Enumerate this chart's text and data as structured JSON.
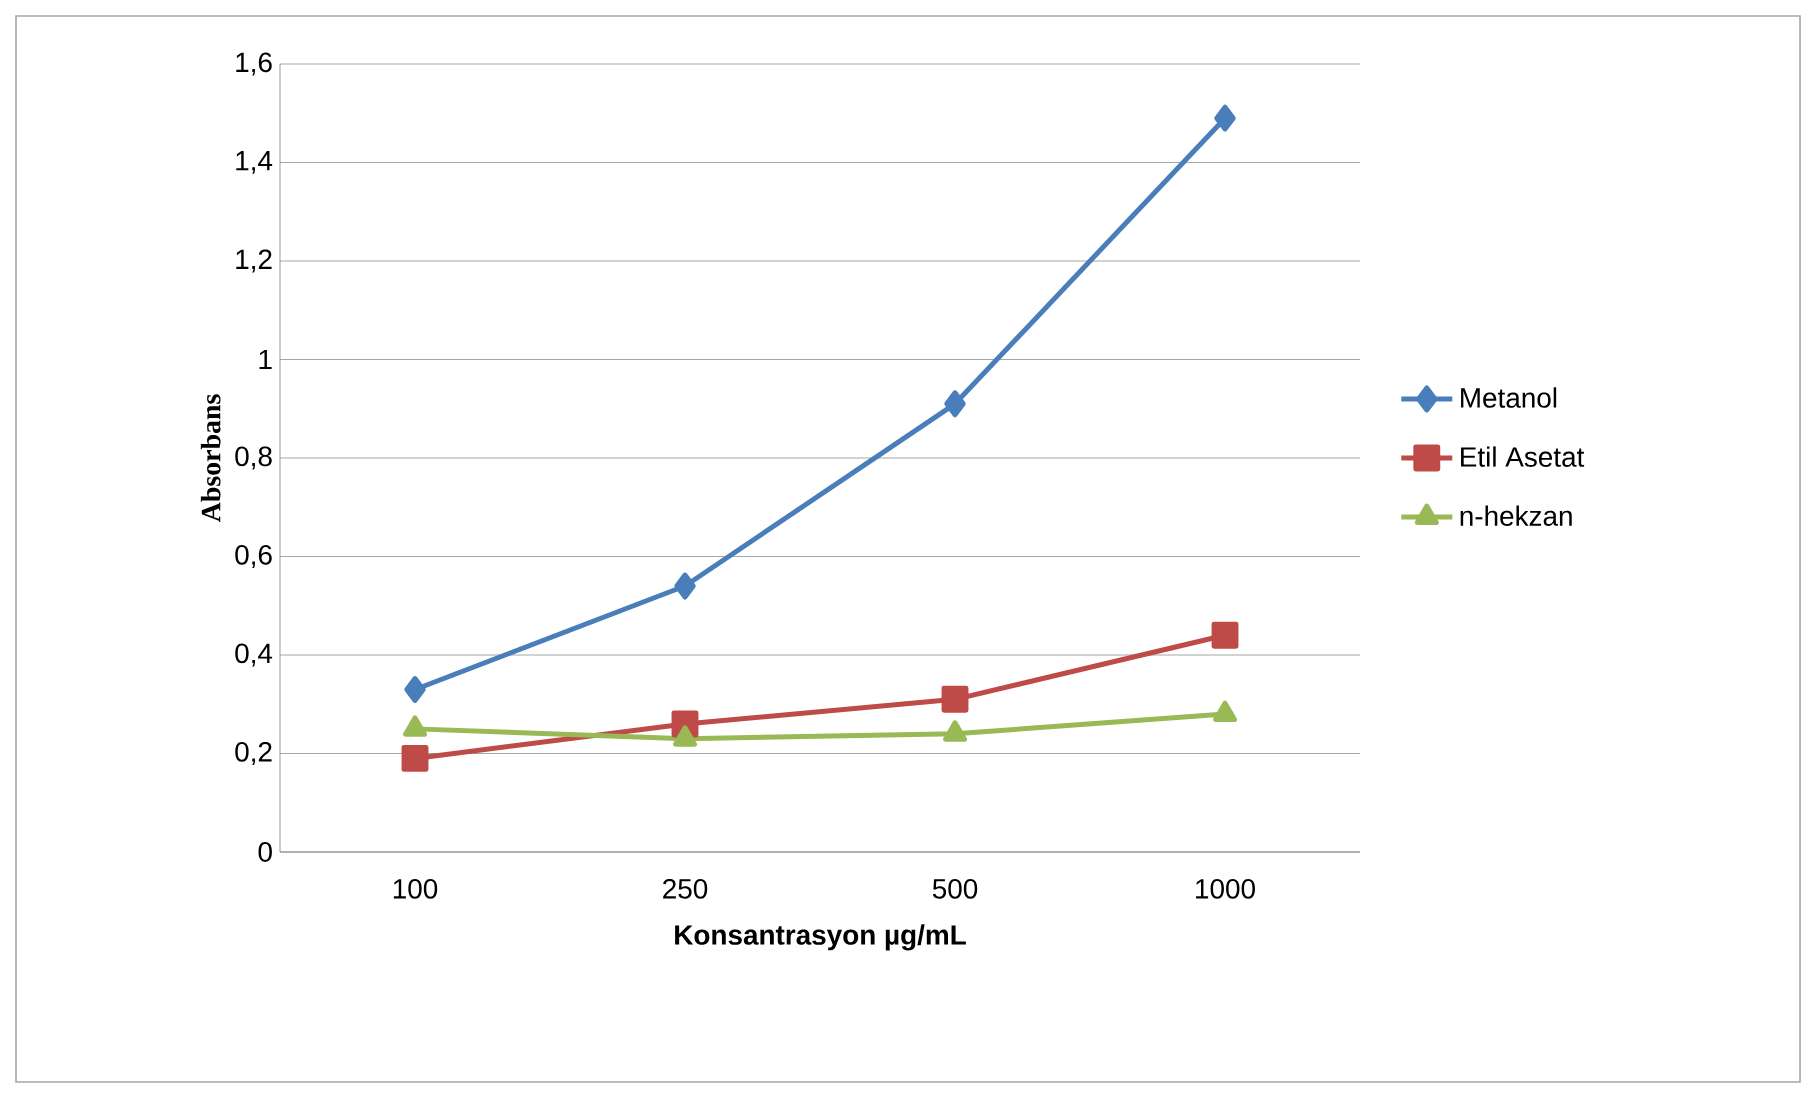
{
  "chart_data": {
    "type": "line",
    "xlabel": "Konsantrasyon µg/mL",
    "ylabel": "Absorbans",
    "categories": [
      "100",
      "250",
      "500",
      "1000"
    ],
    "series": [
      {
        "name": "Metanol",
        "color": "#4a7ebb",
        "marker": "diamond",
        "values": [
          0.33,
          0.54,
          0.91,
          1.49
        ]
      },
      {
        "name": "Etil Asetat",
        "color": "#be4b48",
        "marker": "square",
        "values": [
          0.19,
          0.26,
          0.31,
          0.44
        ]
      },
      {
        "name": "n-hekzan",
        "color": "#98b954",
        "marker": "triangle",
        "values": [
          0.25,
          0.23,
          0.24,
          0.28
        ]
      }
    ],
    "ylim": [
      0,
      1.6
    ],
    "yticks": [
      0,
      {
        "value": 0.2,
        "label": "0,2"
      },
      {
        "value": 0.4,
        "label": "0,4"
      },
      {
        "value": 0.6,
        "label": "0,6"
      },
      {
        "value": 0.8,
        "label": "0,8"
      },
      1,
      {
        "value": 1.2,
        "label": "1,2"
      },
      {
        "value": 1.4,
        "label": "1,4"
      },
      {
        "value": 1.6,
        "label": "1,6"
      }
    ],
    "grid": "y",
    "legend": "right",
    "line_style": "solid"
  }
}
